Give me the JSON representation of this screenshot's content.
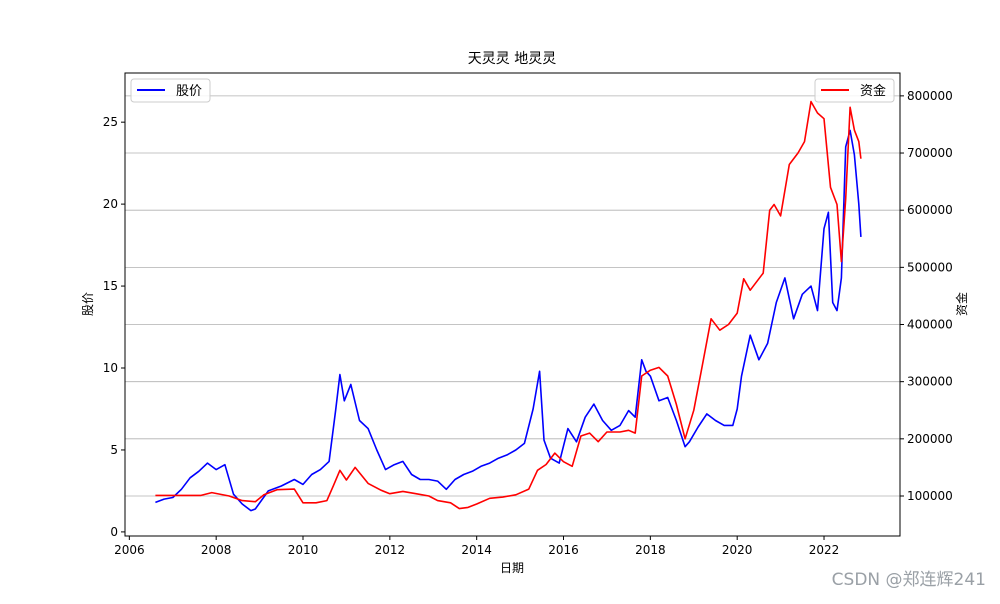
{
  "chart_data": {
    "type": "line",
    "title": "天灵灵 地灵灵",
    "xlabel": "日期",
    "ylabel": "股价",
    "y2label": "资金",
    "xlim": [
      2005.9,
      2023.75
    ],
    "ylim": [
      -0.25,
      28.0
    ],
    "y2lim": [
      30000,
      840000
    ],
    "x_ticks": [
      2006,
      2008,
      2010,
      2012,
      2014,
      2016,
      2018,
      2020,
      2022
    ],
    "y_ticks": [
      0,
      5,
      10,
      15,
      20,
      25
    ],
    "y2_ticks": [
      100000,
      200000,
      300000,
      400000,
      500000,
      600000,
      700000,
      800000
    ],
    "grid": "horizontal lines on right axis",
    "legend_left": {
      "placement": "upper-left",
      "label": "股价"
    },
    "legend_right": {
      "placement": "upper-right",
      "label": "资金"
    },
    "series": [
      {
        "name": "股价",
        "axis": "left",
        "color": "#0000ff",
        "x": [
          2006.6,
          2006.8,
          2007.0,
          2007.2,
          2007.4,
          2007.6,
          2007.8,
          2008.0,
          2008.2,
          2008.4,
          2008.6,
          2008.8,
          2008.9,
          2009.2,
          2009.5,
          2009.8,
          2010.0,
          2010.2,
          2010.4,
          2010.6,
          2010.75,
          2010.85,
          2010.95,
          2011.1,
          2011.3,
          2011.5,
          2011.7,
          2011.9,
          2012.1,
          2012.3,
          2012.5,
          2012.7,
          2012.9,
          2013.1,
          2013.3,
          2013.5,
          2013.7,
          2013.9,
          2014.1,
          2014.3,
          2014.5,
          2014.7,
          2014.9,
          2015.1,
          2015.3,
          2015.45,
          2015.55,
          2015.7,
          2015.9,
          2016.1,
          2016.3,
          2016.5,
          2016.7,
          2016.9,
          2017.1,
          2017.3,
          2017.5,
          2017.65,
          2017.8,
          2017.9,
          2018.0,
          2018.2,
          2018.4,
          2018.6,
          2018.8,
          2018.9,
          2019.1,
          2019.3,
          2019.5,
          2019.7,
          2019.9,
          2020.0,
          2020.1,
          2020.3,
          2020.5,
          2020.7,
          2020.9,
          2021.1,
          2021.3,
          2021.5,
          2021.7,
          2021.85,
          2022.0,
          2022.1,
          2022.2,
          2022.3,
          2022.4,
          2022.5,
          2022.6,
          2022.7,
          2022.8,
          2022.85
        ],
        "values": [
          1.8,
          2.0,
          2.1,
          2.6,
          3.3,
          3.7,
          4.2,
          3.8,
          4.1,
          2.3,
          1.7,
          1.3,
          1.4,
          2.5,
          2.8,
          3.2,
          2.9,
          3.5,
          3.8,
          4.3,
          7.4,
          9.6,
          8.0,
          9.0,
          6.8,
          6.3,
          5.0,
          3.8,
          4.1,
          4.3,
          3.5,
          3.2,
          3.2,
          3.1,
          2.6,
          3.2,
          3.5,
          3.7,
          4.0,
          4.2,
          4.5,
          4.7,
          5.0,
          5.4,
          7.5,
          9.8,
          5.6,
          4.5,
          4.2,
          6.3,
          5.5,
          7.0,
          7.8,
          6.8,
          6.2,
          6.5,
          7.4,
          7.0,
          10.5,
          9.8,
          9.5,
          8.0,
          8.2,
          6.8,
          5.2,
          5.5,
          6.4,
          7.2,
          6.8,
          6.5,
          6.5,
          7.5,
          9.5,
          12.0,
          10.5,
          11.5,
          14.0,
          15.5,
          13.0,
          14.5,
          15.0,
          13.5,
          18.5,
          19.5,
          14.0,
          13.5,
          15.5,
          23.5,
          24.5,
          23.0,
          20.0,
          18.0
        ]
      },
      {
        "name": "资金",
        "axis": "right",
        "color": "#ff0000",
        "x": [
          2006.6,
          2007.0,
          2007.5,
          2007.65,
          2007.9,
          2008.3,
          2008.6,
          2008.9,
          2009.1,
          2009.4,
          2009.8,
          2010.0,
          2010.3,
          2010.55,
          2010.7,
          2010.85,
          2011.0,
          2011.2,
          2011.5,
          2011.8,
          2012.0,
          2012.3,
          2012.6,
          2012.9,
          2013.1,
          2013.4,
          2013.6,
          2013.8,
          2014.0,
          2014.3,
          2014.6,
          2014.9,
          2015.2,
          2015.4,
          2015.6,
          2015.8,
          2016.0,
          2016.2,
          2016.4,
          2016.6,
          2016.8,
          2017.0,
          2017.3,
          2017.5,
          2017.65,
          2017.8,
          2018.0,
          2018.2,
          2018.4,
          2018.6,
          2018.8,
          2019.0,
          2019.2,
          2019.4,
          2019.6,
          2019.8,
          2020.0,
          2020.15,
          2020.3,
          2020.6,
          2020.75,
          2020.85,
          2021.0,
          2021.2,
          2021.4,
          2021.55,
          2021.7,
          2021.85,
          2022.0,
          2022.15,
          2022.3,
          2022.4,
          2022.5,
          2022.6,
          2022.7,
          2022.8,
          2022.85
        ],
        "values": [
          101000,
          101000,
          101000,
          101000,
          106000,
          100000,
          92000,
          90000,
          102000,
          111000,
          112000,
          88000,
          88000,
          92000,
          118000,
          145000,
          128000,
          150000,
          122000,
          110000,
          104000,
          108000,
          104000,
          100000,
          92000,
          88000,
          78000,
          80000,
          86000,
          96000,
          98000,
          102000,
          112000,
          145000,
          155000,
          175000,
          160000,
          152000,
          205000,
          210000,
          195000,
          212000,
          212000,
          215000,
          210000,
          310000,
          320000,
          325000,
          310000,
          260000,
          200000,
          250000,
          330000,
          410000,
          390000,
          400000,
          420000,
          480000,
          460000,
          490000,
          600000,
          610000,
          590000,
          680000,
          700000,
          720000,
          790000,
          770000,
          760000,
          640000,
          610000,
          510000,
          620000,
          780000,
          740000,
          720000,
          690000
        ]
      }
    ]
  },
  "watermark": "CSDN @郑连辉241"
}
